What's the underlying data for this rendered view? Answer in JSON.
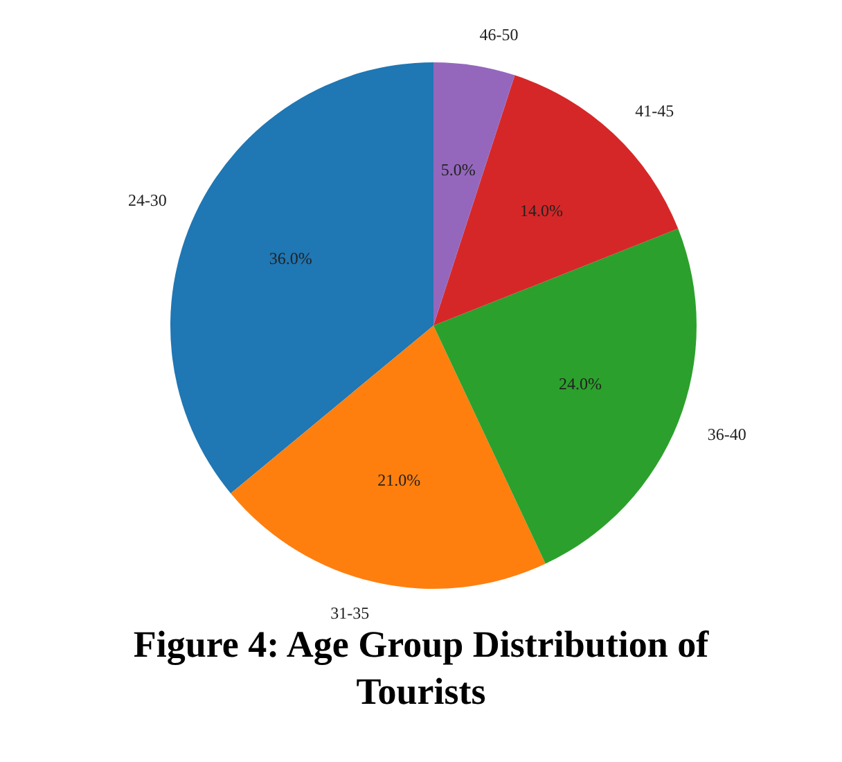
{
  "chart_data": {
    "type": "pie",
    "title": "Figure 4: Age Group Distribution of Tourists",
    "categories": [
      "24-30",
      "31-35",
      "36-40",
      "41-45",
      "46-50"
    ],
    "values": [
      36,
      21,
      24,
      14,
      5
    ],
    "value_labels": [
      "36.0%",
      "21.0%",
      "24.0%",
      "14.0%",
      "5.0%"
    ],
    "colors": [
      "#1f77b4",
      "#ff7f0e",
      "#2ca02c",
      "#d62728",
      "#9467bd"
    ],
    "legend": false
  }
}
